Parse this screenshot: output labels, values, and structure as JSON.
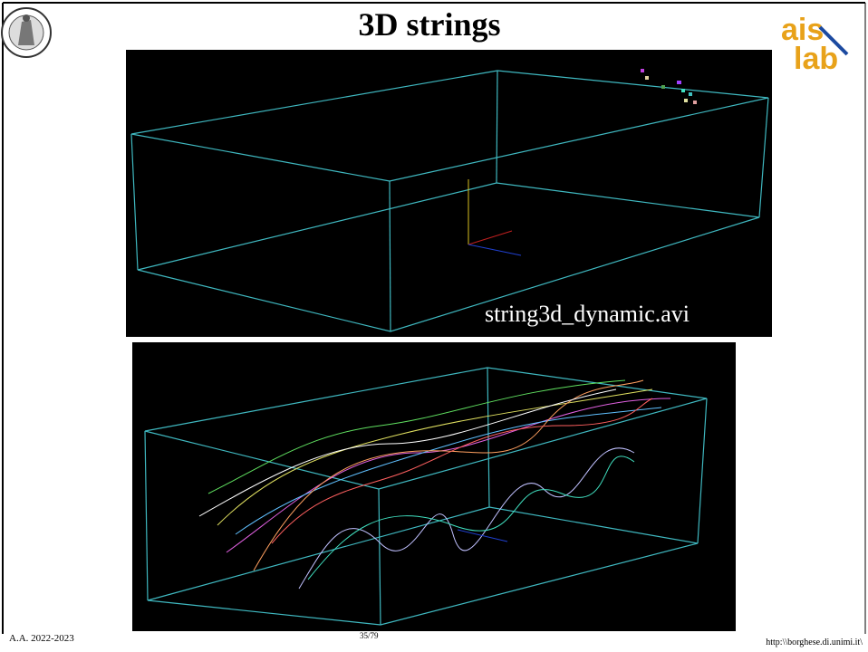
{
  "slide": {
    "title": "3D strings",
    "caption": "string3d_dynamic.avi",
    "footer": {
      "left": "A.A. 2022-2023",
      "center": "35/79",
      "right": "http:\\\\borghese.di.unimi.it\\"
    }
  }
}
